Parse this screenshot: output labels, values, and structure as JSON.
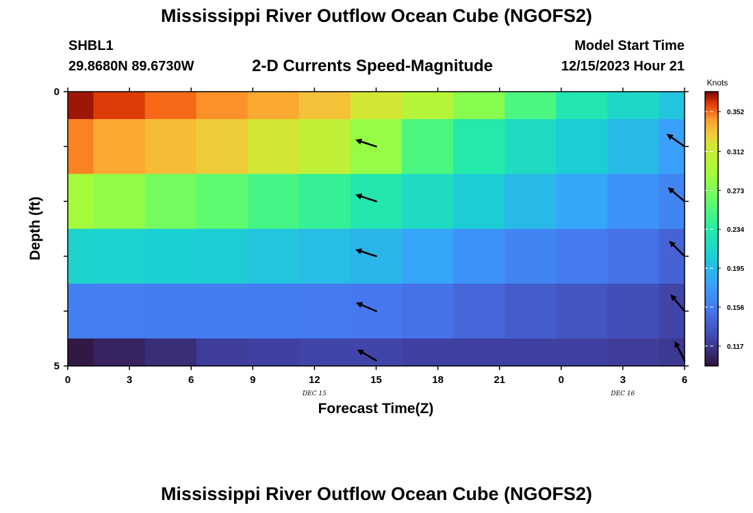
{
  "header": {
    "title": "Mississippi River Outflow Ocean Cube (NGOFS2)",
    "station": "SHBL1",
    "coords": "29.8680N  89.6730W",
    "variable": "2-D Currents Speed-Magnitude",
    "model_start_label": "Model Start Time",
    "model_start_value": "12/15/2023 Hour 21"
  },
  "footer": {
    "title": "Mississippi River Outflow Ocean Cube (NGOFS2)"
  },
  "chart_data": {
    "type": "heatmap",
    "xlabel": "Forecast Time(Z)",
    "ylabel": "Depth (ft)",
    "x_tick_labels": [
      "0",
      "3",
      "6",
      "9",
      "12",
      "15",
      "18",
      "21",
      "0",
      "3",
      "6"
    ],
    "x_range_hours": [
      0,
      30
    ],
    "date_labels": [
      {
        "text": "DEC 15",
        "hour": 12
      },
      {
        "text": "DEC 16",
        "hour": 27
      }
    ],
    "y_range": [
      0,
      5
    ],
    "y_tick_labels": [
      "0",
      "",
      "",
      "",
      "",
      "5"
    ],
    "colorbar": {
      "title": "Knots",
      "min": 0.097,
      "max": 0.372,
      "ticks": [
        "0.117",
        "0.156",
        "0.195",
        "0.234",
        "0.273",
        "0.312",
        "0.352"
      ]
    },
    "x_hours": [
      0,
      2.5,
      5,
      7.5,
      10,
      12.5,
      15,
      17.5,
      20,
      22.5,
      25,
      27.5,
      30
    ],
    "depth_bounds": [
      0,
      0.5,
      1.5,
      2.5,
      3.5,
      4.5,
      5
    ],
    "values": [
      [
        0.368,
        0.36,
        0.352,
        0.346,
        0.34,
        0.332,
        0.318,
        0.3,
        0.278,
        0.252,
        0.228,
        0.214,
        0.2
      ],
      [
        0.348,
        0.34,
        0.334,
        0.328,
        0.318,
        0.306,
        0.284,
        0.252,
        0.232,
        0.218,
        0.206,
        0.194,
        0.178
      ],
      [
        0.29,
        0.282,
        0.27,
        0.26,
        0.25,
        0.242,
        0.23,
        0.218,
        0.206,
        0.194,
        0.182,
        0.17,
        0.162
      ],
      [
        0.212,
        0.21,
        0.208,
        0.206,
        0.2,
        0.196,
        0.192,
        0.182,
        0.17,
        0.162,
        0.156,
        0.15,
        0.142
      ],
      [
        0.158,
        0.158,
        0.157,
        0.157,
        0.157,
        0.156,
        0.154,
        0.15,
        0.144,
        0.138,
        0.134,
        0.13,
        0.124
      ],
      [
        0.1,
        0.106,
        0.112,
        0.12,
        0.122,
        0.124,
        0.124,
        0.122,
        0.122,
        0.122,
        0.122,
        0.12,
        0.118
      ]
    ],
    "vectors": [
      {
        "hour": 15,
        "depth": 1.0,
        "angle_deg": 162
      },
      {
        "hour": 15,
        "depth": 2.0,
        "angle_deg": 162
      },
      {
        "hour": 15,
        "depth": 3.0,
        "angle_deg": 162
      },
      {
        "hour": 15,
        "depth": 4.0,
        "angle_deg": 157
      },
      {
        "hour": 15,
        "depth": 4.9,
        "angle_deg": 150
      },
      {
        "hour": 30,
        "depth": 1.0,
        "angle_deg": 145
      },
      {
        "hour": 30,
        "depth": 2.0,
        "angle_deg": 140
      },
      {
        "hour": 30,
        "depth": 3.0,
        "angle_deg": 135
      },
      {
        "hour": 30,
        "depth": 4.0,
        "angle_deg": 130
      },
      {
        "hour": 30,
        "depth": 4.9,
        "angle_deg": 117
      }
    ]
  }
}
